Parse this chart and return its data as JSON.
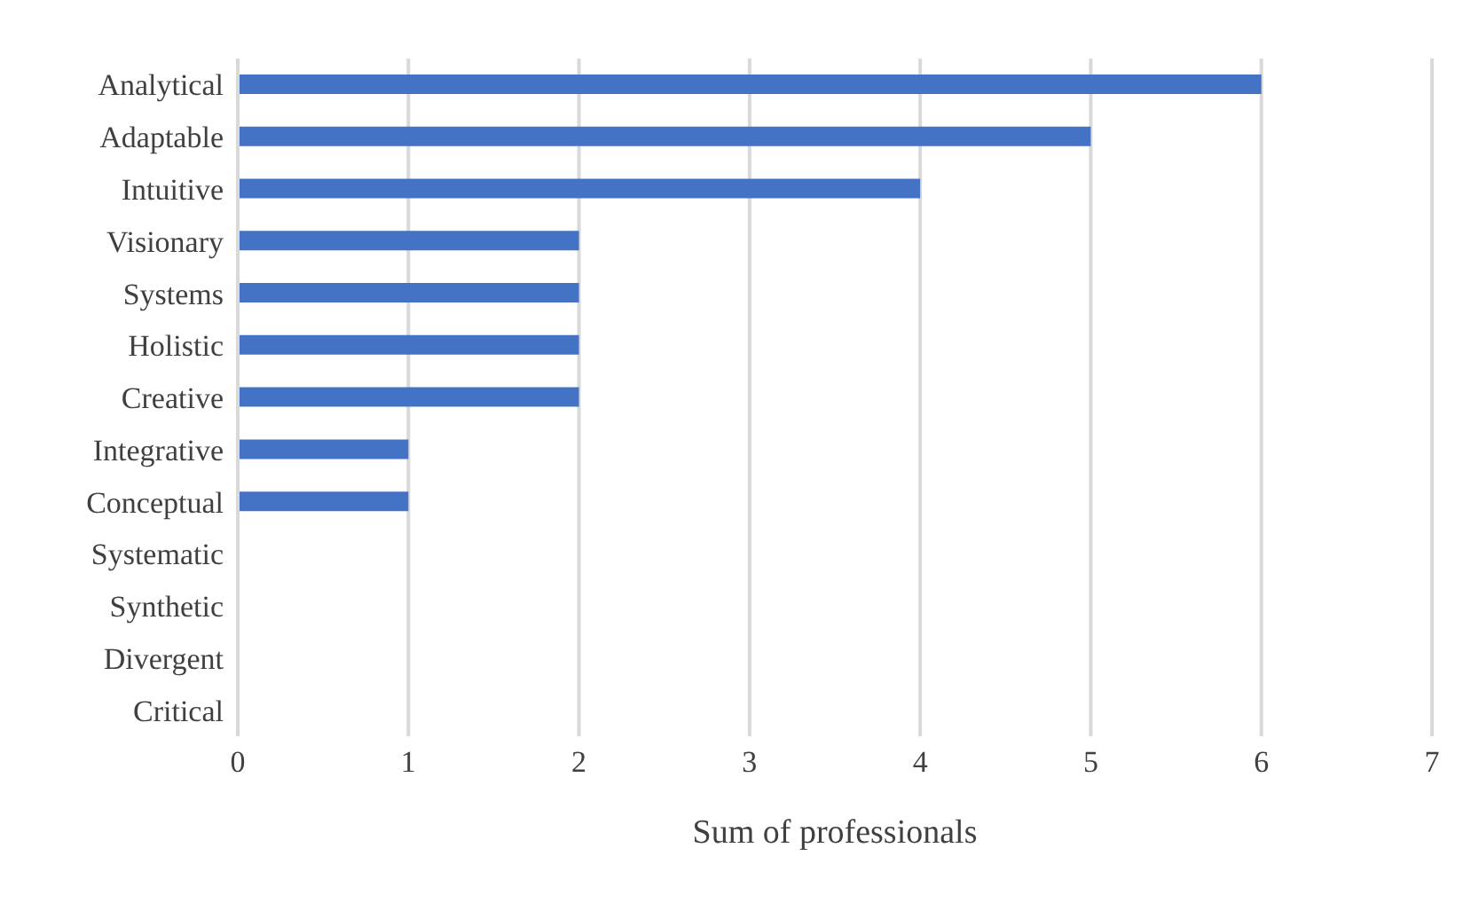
{
  "chart_data": {
    "type": "bar",
    "orientation": "horizontal",
    "xlabel": "Sum of professionals",
    "categories": [
      "Analytical",
      "Adaptable",
      "Intuitive",
      "Visionary",
      "Systems",
      "Holistic",
      "Creative",
      "Integrative",
      "Conceptual",
      "Systematic",
      "Synthetic",
      "Divergent",
      "Critical"
    ],
    "values": [
      6,
      5,
      4,
      2,
      2,
      2,
      2,
      1,
      1,
      0,
      0,
      0,
      0
    ],
    "color": "#4472c4",
    "xlim": [
      0,
      7
    ],
    "xticks": [
      0,
      1,
      2,
      3,
      4,
      5,
      6,
      7
    ],
    "grid": "x"
  }
}
